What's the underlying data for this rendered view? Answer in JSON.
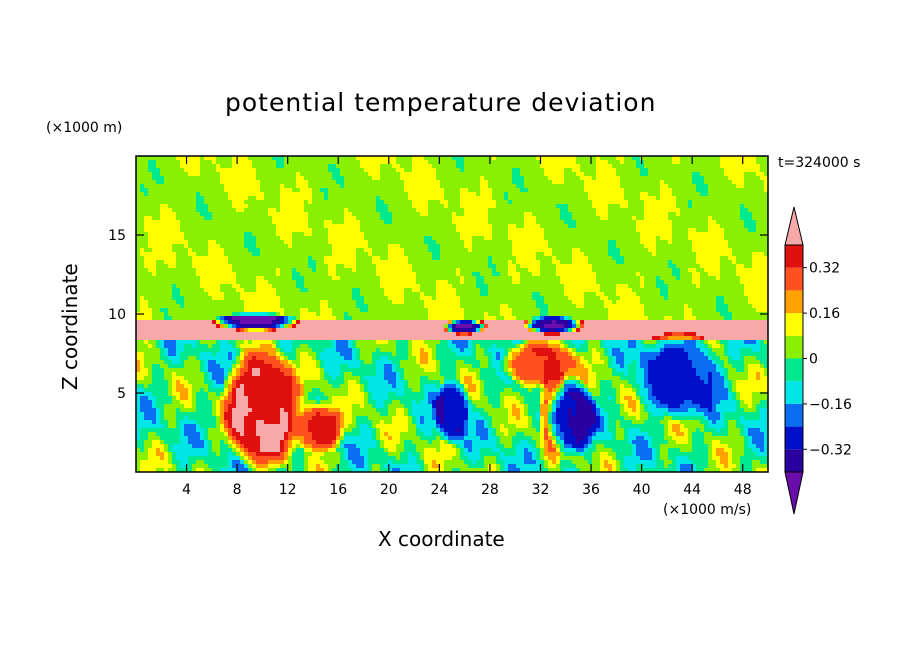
{
  "chart_data": {
    "type": "heatmap",
    "title": "potential temperature deviation",
    "xlabel": "X coordinate",
    "ylabel": "Z coordinate",
    "x_unit": "(×1000 m/s)",
    "y_unit": "(×1000 m)",
    "time_label": "t=324000 s",
    "xlim": [
      0,
      50
    ],
    "ylim": [
      0,
      20
    ],
    "x_ticks": [
      4,
      8,
      12,
      16,
      20,
      24,
      28,
      32,
      36,
      40,
      44,
      48
    ],
    "y_ticks": [
      5,
      10,
      15
    ],
    "colorbar": {
      "levels": [
        -0.4,
        -0.32,
        -0.24,
        -0.16,
        -0.08,
        0,
        0.08,
        0.16,
        0.24,
        0.32,
        0.4
      ],
      "tick_values": [
        0.32,
        0.16,
        0,
        -0.16,
        -0.32
      ],
      "tick_labels": [
        "0.32",
        "0.16",
        "0",
        "−0.16",
        "−0.32"
      ],
      "colors": [
        "#6a0dad",
        "#2a00a0",
        "#0010c8",
        "#0a6cf0",
        "#00e6e6",
        "#00e890",
        "#88f000",
        "#ffff00",
        "#ffa200",
        "#ff5020",
        "#e01010",
        "#f8a8a8"
      ],
      "extend": "both"
    },
    "field_features": [
      {
        "kind": "band",
        "z_range": [
          8.3,
          9.7
        ],
        "level": 0.45
      },
      {
        "kind": "blob",
        "x": 10,
        "z": 4,
        "rx": 3.5,
        "rz": 4.2,
        "level": 0.4
      },
      {
        "kind": "blob",
        "x": 14.5,
        "z": 2.8,
        "rx": 2.2,
        "rz": 1.8,
        "level": 0.35
      },
      {
        "kind": "blob",
        "x": 32,
        "z": 6.8,
        "rx": 3.5,
        "rz": 1.6,
        "level": 0.3
      },
      {
        "kind": "blob",
        "x": 33,
        "z": 4,
        "rx": 1.2,
        "rz": 3.8,
        "level": 0.28
      },
      {
        "kind": "blob",
        "x": 34.5,
        "z": 3.4,
        "rx": 2.2,
        "rz": 2.6,
        "level": -0.32
      },
      {
        "kind": "blob",
        "x": 43,
        "z": 6,
        "rx": 4,
        "rz": 3,
        "level": -0.25
      },
      {
        "kind": "blob",
        "x": 25,
        "z": 3.8,
        "rx": 1.6,
        "rz": 2.2,
        "level": -0.3
      },
      {
        "kind": "blob",
        "x": 9.5,
        "z": 9.5,
        "rx": 3.5,
        "rz": 0.6,
        "level": -0.45
      },
      {
        "kind": "blob",
        "x": 26,
        "z": 9.2,
        "rx": 1.8,
        "rz": 0.5,
        "level": -0.45
      },
      {
        "kind": "blob",
        "x": 33,
        "z": 9.3,
        "rx": 2.5,
        "rz": 0.6,
        "level": -0.45
      }
    ]
  }
}
